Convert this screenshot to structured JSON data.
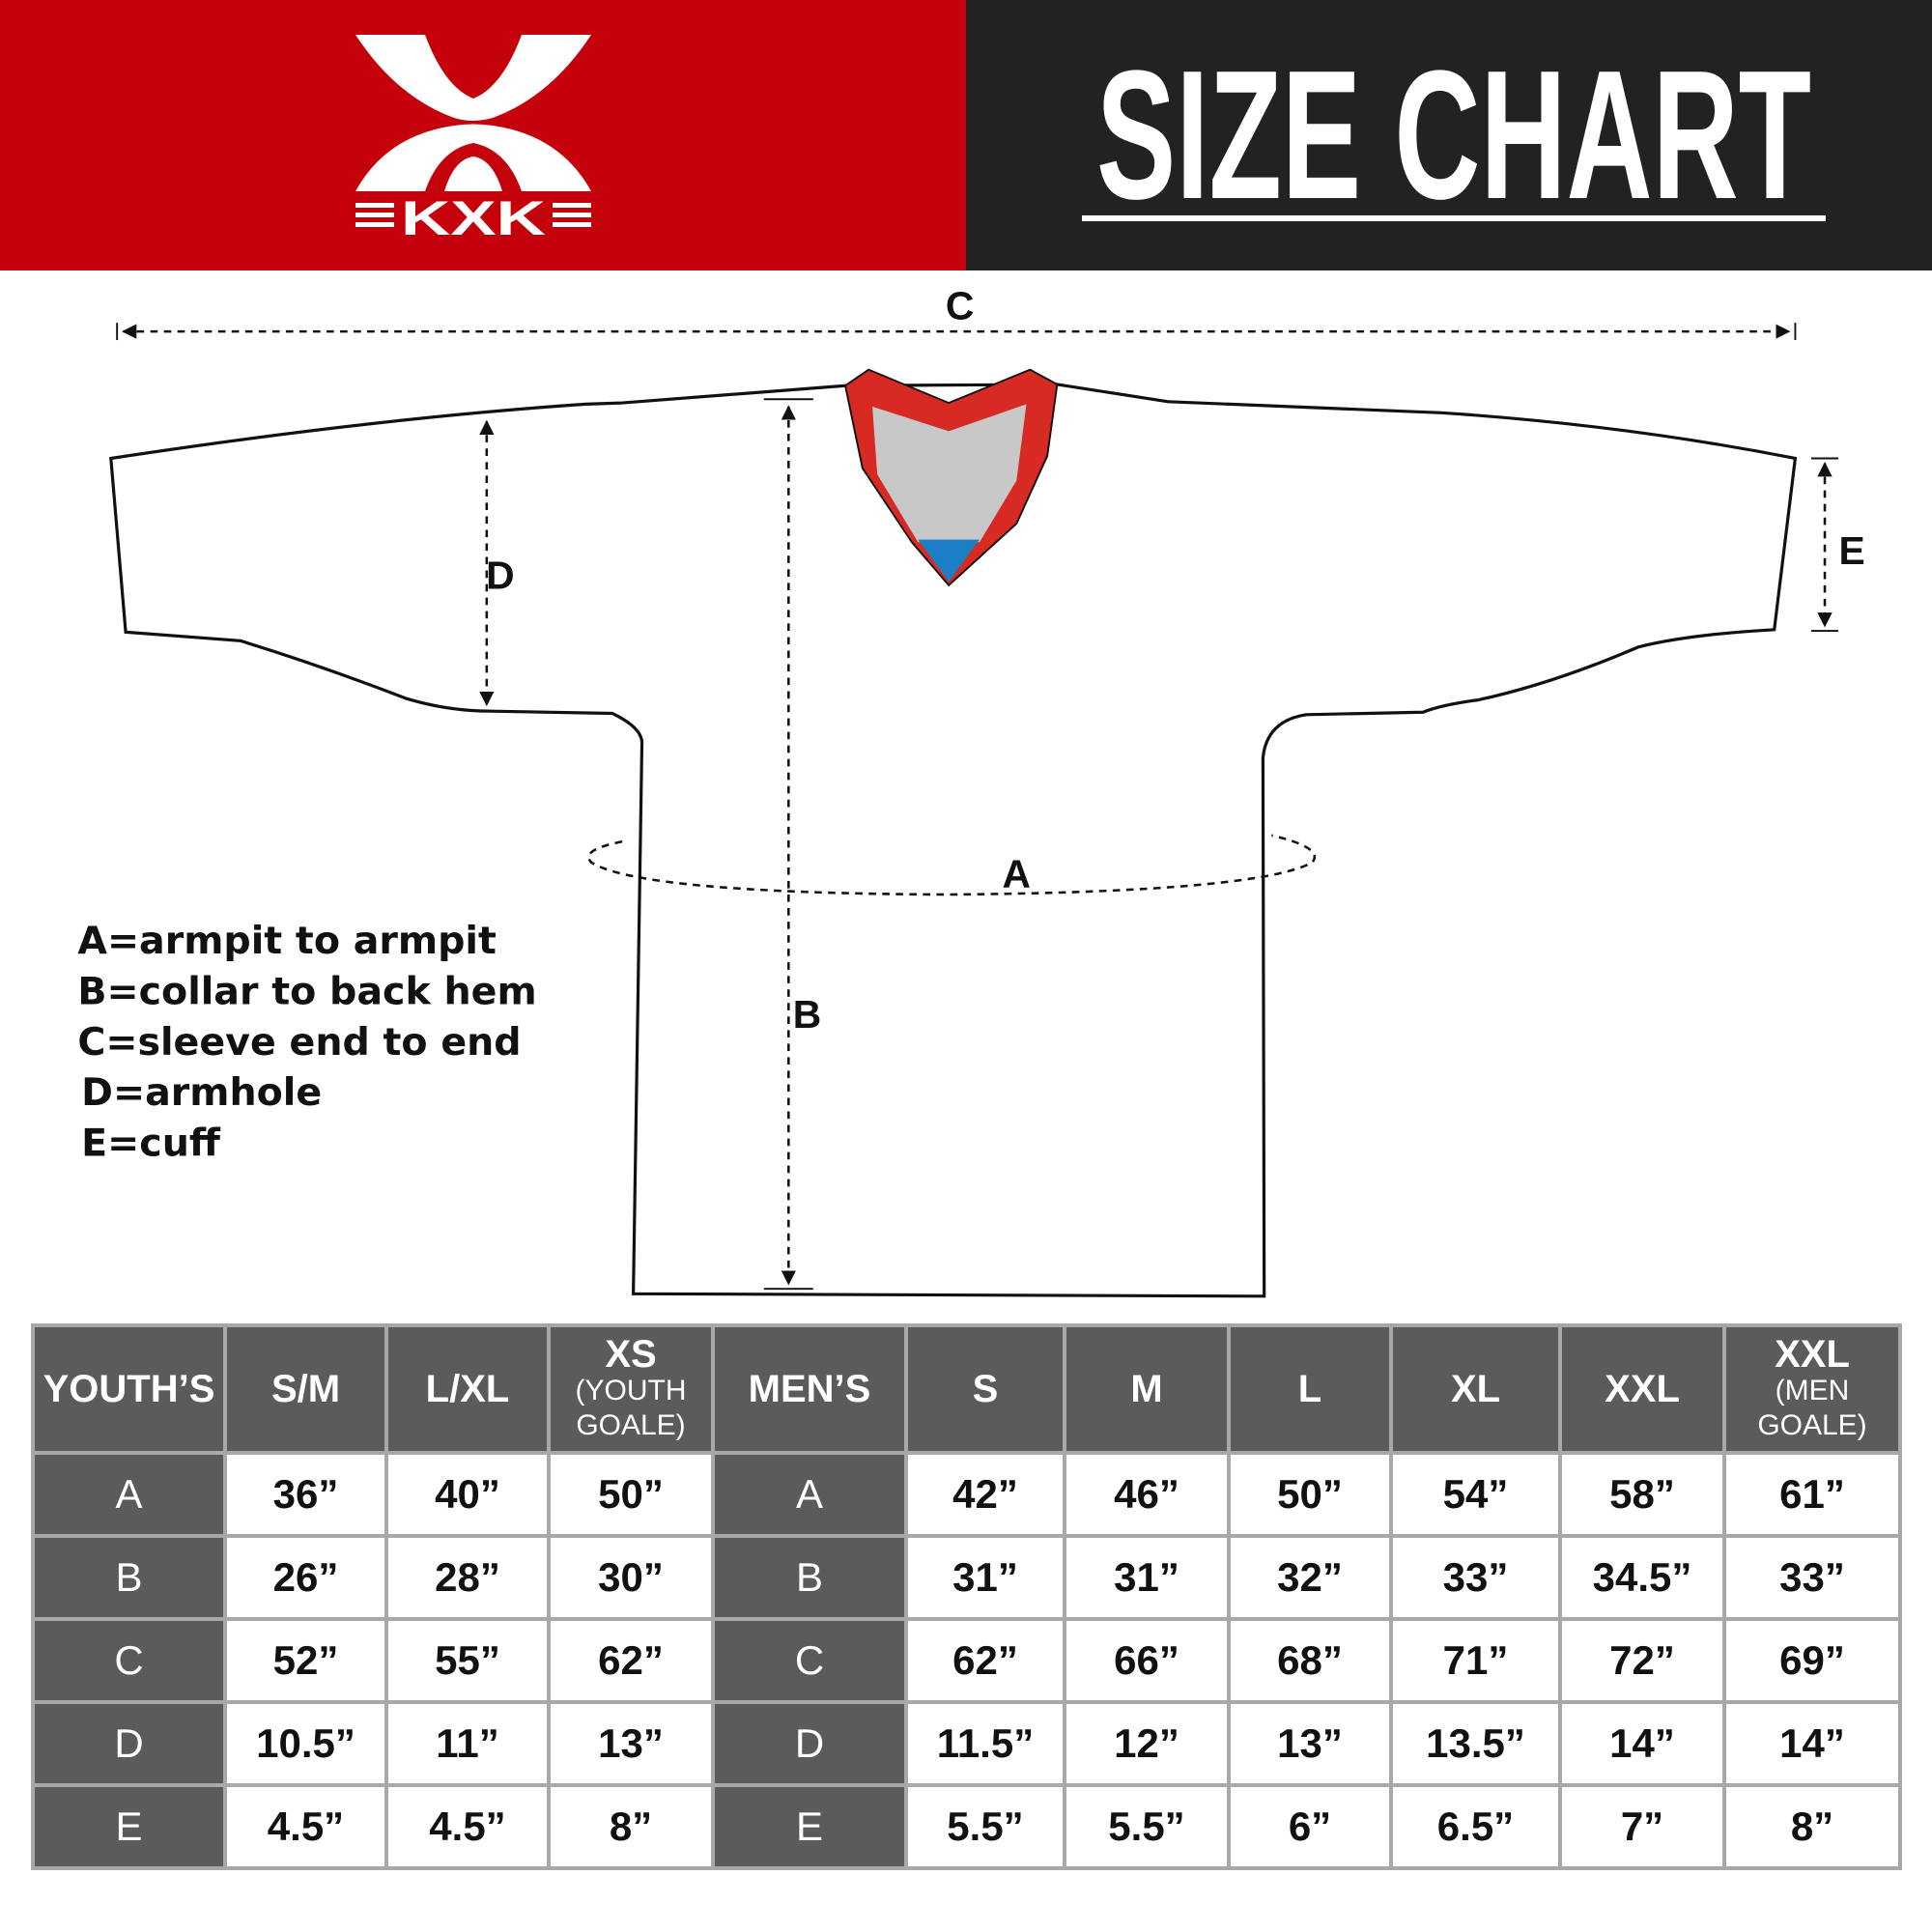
{
  "brand": {
    "logo_text": "KXK",
    "red": "#c4000a",
    "dark": "#222222"
  },
  "header": {
    "title": "SIZE CHART"
  },
  "diagram": {
    "labels": {
      "a": "A",
      "b": "B",
      "c": "C",
      "d": "D",
      "e": "E"
    },
    "legend": [
      "A=armpit to armpit",
      "B=collar to back hem",
      "C=sleeve end to end",
      "D=armhole",
      "E=cuff"
    ]
  },
  "table": {
    "youth_header": {
      "label": "YOUTH’S",
      "sizes": [
        {
          "main": "S/M",
          "sub": ""
        },
        {
          "main": "L/XL",
          "sub": ""
        },
        {
          "main": "XS",
          "sub": "(YOUTH GOALE)"
        }
      ]
    },
    "men_header": {
      "label": "MEN’S",
      "sizes": [
        {
          "main": "S",
          "sub": ""
        },
        {
          "main": "M",
          "sub": ""
        },
        {
          "main": "L",
          "sub": ""
        },
        {
          "main": "XL",
          "sub": ""
        },
        {
          "main": "XXL",
          "sub": ""
        },
        {
          "main": "XXL",
          "sub": "(MEN GOALE)"
        }
      ]
    },
    "rows": [
      {
        "label": "A",
        "youth": [
          "36”",
          "40”",
          "50”"
        ],
        "men": [
          "42”",
          "46”",
          "50”",
          "54”",
          "58”",
          "61”"
        ]
      },
      {
        "label": "B",
        "youth": [
          "26”",
          "28”",
          "30”"
        ],
        "men": [
          "31”",
          "31”",
          "32”",
          "33”",
          "34.5”",
          "33”"
        ]
      },
      {
        "label": "C",
        "youth": [
          "52”",
          "55”",
          "62”"
        ],
        "men": [
          "62”",
          "66”",
          "68”",
          "71”",
          "72”",
          "69”"
        ]
      },
      {
        "label": "D",
        "youth": [
          "10.5”",
          "11”",
          "13”"
        ],
        "men": [
          "11.5”",
          "12”",
          "13”",
          "13.5”",
          "14”",
          "14”"
        ]
      },
      {
        "label": "E",
        "youth": [
          "4.5”",
          "4.5”",
          "8”"
        ],
        "men": [
          "5.5”",
          "5.5”",
          "6”",
          "6.5”",
          "7”",
          "8”"
        ]
      }
    ]
  }
}
